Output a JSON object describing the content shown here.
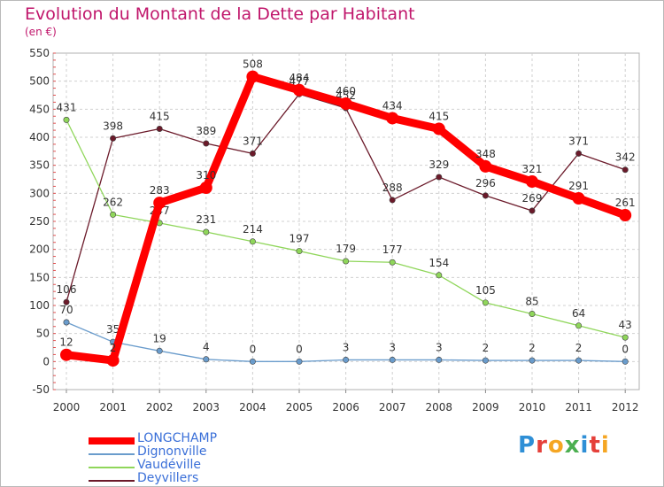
{
  "chart_data": {
    "type": "line",
    "title": "Evolution du Montant de la Dette par Habitant",
    "subtitle": "(en €)",
    "categories": [
      "2000",
      "2001",
      "2002",
      "2003",
      "2004",
      "2005",
      "2006",
      "2007",
      "2008",
      "2009",
      "2010",
      "2011",
      "2012"
    ],
    "ylim": [
      -50,
      550
    ],
    "yticks": [
      -50,
      0,
      50,
      100,
      150,
      200,
      250,
      300,
      350,
      400,
      450,
      500,
      550
    ],
    "grid": true,
    "legend_position": "bottom-left",
    "series": [
      {
        "name": "Deyvillers",
        "color": "#6b1a2a",
        "values": [
          106,
          398,
          415,
          389,
          371,
          477,
          452,
          288,
          329,
          296,
          269,
          371,
          342
        ],
        "labels": [
          "106",
          "398",
          "415",
          "389",
          "371",
          "477",
          "452",
          "288",
          "329",
          "296",
          "269",
          "371",
          "342"
        ]
      },
      {
        "name": "Vaudéville",
        "color": "#8fd65a",
        "values": [
          431,
          262,
          247,
          231,
          214,
          197,
          179,
          177,
          154,
          105,
          85,
          64,
          43
        ],
        "labels": [
          "431",
          "262",
          "247",
          "231",
          "214",
          "197",
          "179",
          "177",
          "154",
          "105",
          "85",
          "64",
          "43"
        ]
      },
      {
        "name": "Dignonville",
        "color": "#6a9ccc",
        "values": [
          70,
          35,
          19,
          4,
          0,
          0,
          3,
          3,
          3,
          2,
          2,
          2,
          0
        ],
        "labels": [
          "70",
          "35",
          "19",
          "4",
          "0",
          "0",
          "3",
          "3",
          "3",
          "2",
          "2",
          "2",
          "0"
        ]
      },
      {
        "name": "LONGCHAMP",
        "color": "#ff0000",
        "values": [
          12,
          2,
          283,
          310,
          508,
          484,
          460,
          434,
          415,
          348,
          321,
          291,
          261
        ],
        "labels": [
          "12",
          "2",
          "283",
          "310",
          "508",
          "484",
          "460",
          "434",
          "415",
          "348",
          "321",
          "291",
          "261"
        ]
      }
    ],
    "legend_order": [
      "LONGCHAMP",
      "Dignonville",
      "Vaudéville",
      "Deyvillers"
    ]
  },
  "branding": {
    "letters": [
      "P",
      "r",
      "o",
      "x",
      "i",
      "t",
      "i"
    ],
    "colors": [
      "#2f8fd6",
      "#e5403a",
      "#f5a623",
      "#4caf50",
      "#2f8fd6",
      "#e5403a",
      "#f5a623"
    ]
  }
}
